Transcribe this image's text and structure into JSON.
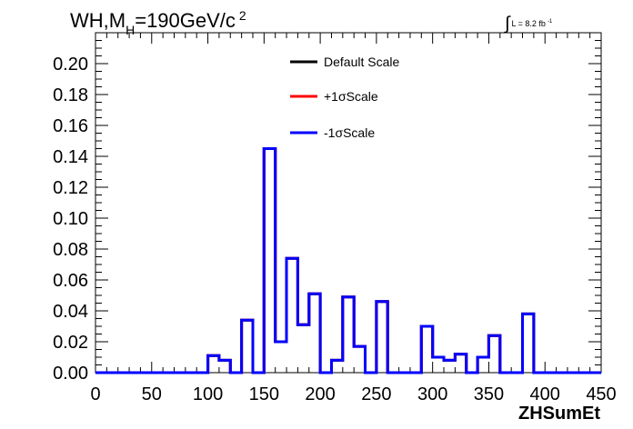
{
  "chart_data": {
    "type": "line",
    "title": {
      "main": "WH,M",
      "sub": "H",
      "rest": "=190GeV/c",
      "sup": "2"
    },
    "luminosity": {
      "integral": "∫",
      "text": "L = 8.2 fb",
      "sup": "-1"
    },
    "xlabel": "ZHSumEt",
    "ylabel": "",
    "xlim": [
      0,
      450
    ],
    "ylim": [
      0,
      0.22
    ],
    "x_ticks": [
      "0",
      "50",
      "100",
      "150",
      "200",
      "250",
      "300",
      "350",
      "400",
      "450"
    ],
    "y_ticks": [
      "0.00",
      "0.02",
      "0.04",
      "0.06",
      "0.08",
      "0.10",
      "0.12",
      "0.14",
      "0.16",
      "0.18",
      "0.20"
    ],
    "legend_position": "top-center",
    "bin_edges": [
      0,
      10,
      20,
      30,
      40,
      50,
      60,
      70,
      80,
      90,
      100,
      105,
      110,
      115,
      120,
      125,
      130,
      135,
      140,
      145,
      150,
      155,
      160,
      165,
      170,
      175,
      180,
      185,
      190,
      195,
      200,
      205,
      210,
      215,
      220,
      225,
      230,
      235,
      240,
      245,
      250,
      255,
      260,
      265,
      270,
      275,
      280,
      285,
      290,
      295,
      300,
      305,
      310,
      315,
      320,
      325,
      330,
      335,
      340,
      345,
      350,
      355,
      360,
      365,
      370,
      375,
      380,
      385,
      390,
      395,
      400,
      410,
      420,
      430,
      440,
      450
    ],
    "series": [
      {
        "name": "Default Scale",
        "color": "#000000",
        "values": [
          0,
          0,
          0,
          0,
          0,
          0,
          0,
          0,
          0,
          0,
          0.011,
          0.011,
          0.008,
          0.008,
          0,
          0,
          0.034,
          0.034,
          0,
          0,
          0.145,
          0.145,
          0.02,
          0.02,
          0.074,
          0.074,
          0.031,
          0.031,
          0.051,
          0.051,
          0,
          0,
          0.008,
          0.008,
          0.049,
          0.049,
          0.017,
          0.017,
          0,
          0,
          0.046,
          0.046,
          0,
          0,
          0,
          0,
          0,
          0,
          0.03,
          0.03,
          0.01,
          0.01,
          0.008,
          0.008,
          0.012,
          0.012,
          0,
          0,
          0.01,
          0.01,
          0.024,
          0.024,
          0,
          0,
          0,
          0,
          0.038,
          0.038,
          0,
          0,
          0,
          0,
          0,
          0,
          0
        ]
      },
      {
        "name": "+1σScale",
        "color": "#ff0000",
        "values": [
          0,
          0,
          0,
          0,
          0,
          0,
          0,
          0,
          0,
          0,
          0.011,
          0.011,
          0.008,
          0.008,
          0,
          0,
          0.034,
          0.034,
          0,
          0,
          0.145,
          0.145,
          0.02,
          0.02,
          0.074,
          0.074,
          0.031,
          0.031,
          0.051,
          0.051,
          0,
          0,
          0.008,
          0.008,
          0.049,
          0.049,
          0.017,
          0.017,
          0,
          0,
          0.046,
          0.046,
          0,
          0,
          0,
          0,
          0,
          0,
          0.03,
          0.03,
          0.01,
          0.01,
          0.008,
          0.008,
          0.012,
          0.012,
          0,
          0,
          0.01,
          0.01,
          0.024,
          0.024,
          0,
          0,
          0,
          0,
          0.038,
          0.038,
          0,
          0,
          0,
          0,
          0,
          0,
          0
        ]
      },
      {
        "name": "-1σScale",
        "color": "#0000ff",
        "values": [
          0,
          0,
          0,
          0,
          0,
          0,
          0,
          0,
          0,
          0,
          0.011,
          0.011,
          0.008,
          0.008,
          0,
          0,
          0.034,
          0.034,
          0,
          0,
          0.145,
          0.145,
          0.02,
          0.02,
          0.074,
          0.074,
          0.031,
          0.031,
          0.051,
          0.051,
          0,
          0,
          0.008,
          0.008,
          0.049,
          0.049,
          0.017,
          0.017,
          0,
          0,
          0.046,
          0.046,
          0,
          0,
          0,
          0,
          0,
          0,
          0.03,
          0.03,
          0.01,
          0.01,
          0.008,
          0.008,
          0.012,
          0.012,
          0,
          0,
          0.01,
          0.01,
          0.024,
          0.024,
          0,
          0,
          0,
          0,
          0.038,
          0.038,
          0,
          0,
          0,
          0,
          0,
          0,
          0
        ]
      }
    ]
  }
}
